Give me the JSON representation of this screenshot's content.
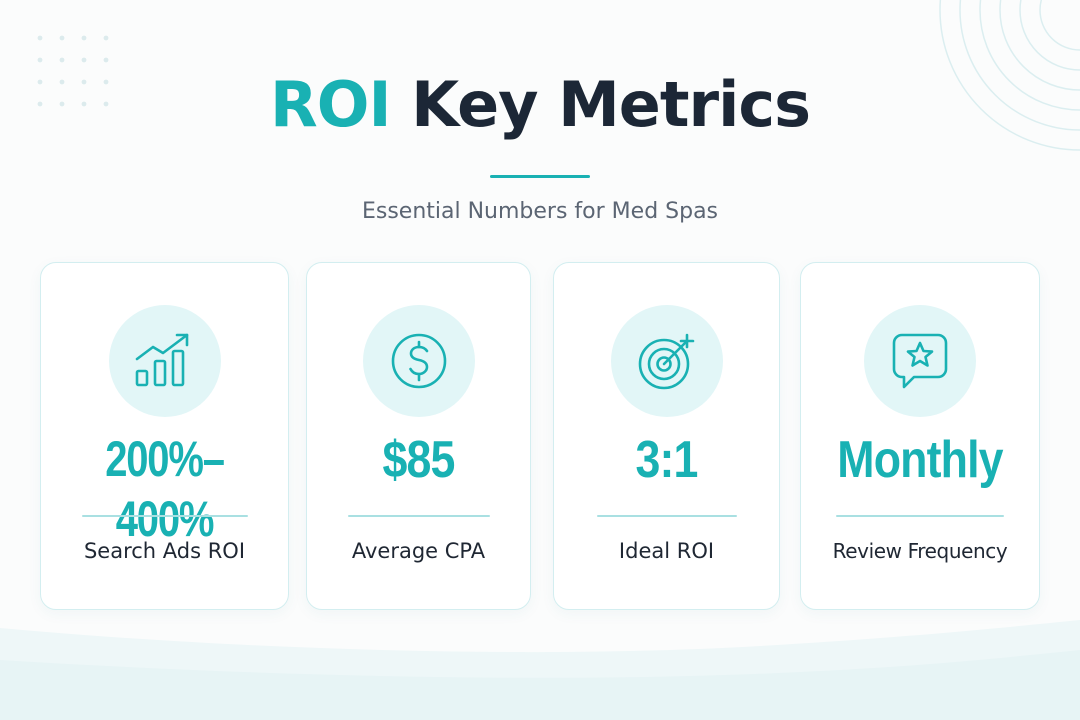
{
  "header": {
    "title_accent": "ROI",
    "title_main": "Key Metrics",
    "subtitle": "Essential Numbers for Med Spas"
  },
  "colors": {
    "accent": "#19b1b3",
    "dark": "#1c2736",
    "icon_bg": "#e2f6f7",
    "card_border": "#d3eef0"
  },
  "metrics": [
    {
      "icon": "chart-growth-icon",
      "value": "200%–400%",
      "label": "Search Ads ROI"
    },
    {
      "icon": "dollar-icon",
      "value": "$85",
      "label": "Average CPA"
    },
    {
      "icon": "target-icon",
      "value": "3:1",
      "label": "Ideal ROI"
    },
    {
      "icon": "star-chat-icon",
      "value": "Monthly",
      "label": "Review Frequency"
    }
  ]
}
